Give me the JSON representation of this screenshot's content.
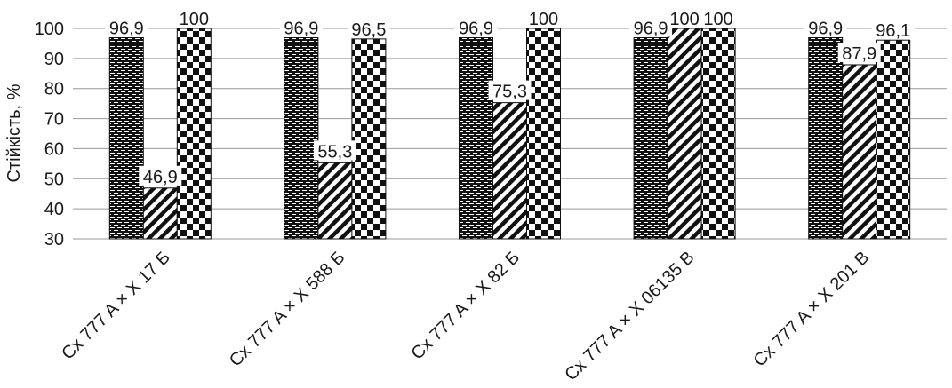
{
  "chart_data": {
    "type": "bar",
    "ylabel": "Стійкість, %",
    "ylim": [
      30,
      100
    ],
    "yticks": [
      30,
      40,
      50,
      60,
      70,
      80,
      90,
      100
    ],
    "grid": true,
    "categories": [
      "Cx 777 A × X 17 Б",
      "Cx 777 A × X 588 Б",
      "Cx 777 A × X 82 Б",
      "Cx 777 A × X 06135 B",
      "Cx 777 A × X 201 B"
    ],
    "series": [
      {
        "values": [
          96.9,
          96.9,
          96.9,
          96.9,
          96.9
        ],
        "labels": [
          "96,9",
          "96,9",
          "96,9",
          "96,9",
          "96,9"
        ],
        "pattern": "brick"
      },
      {
        "values": [
          46.9,
          55.3,
          75.3,
          100,
          87.9
        ],
        "labels": [
          "46,9",
          "55,3",
          "75,3",
          "100",
          "87,9"
        ],
        "pattern": "diagonal"
      },
      {
        "values": [
          100,
          96.5,
          100,
          100,
          96.1
        ],
        "labels": [
          "100",
          "96,5",
          "100",
          "100",
          "96,1"
        ],
        "pattern": "checker"
      }
    ]
  }
}
